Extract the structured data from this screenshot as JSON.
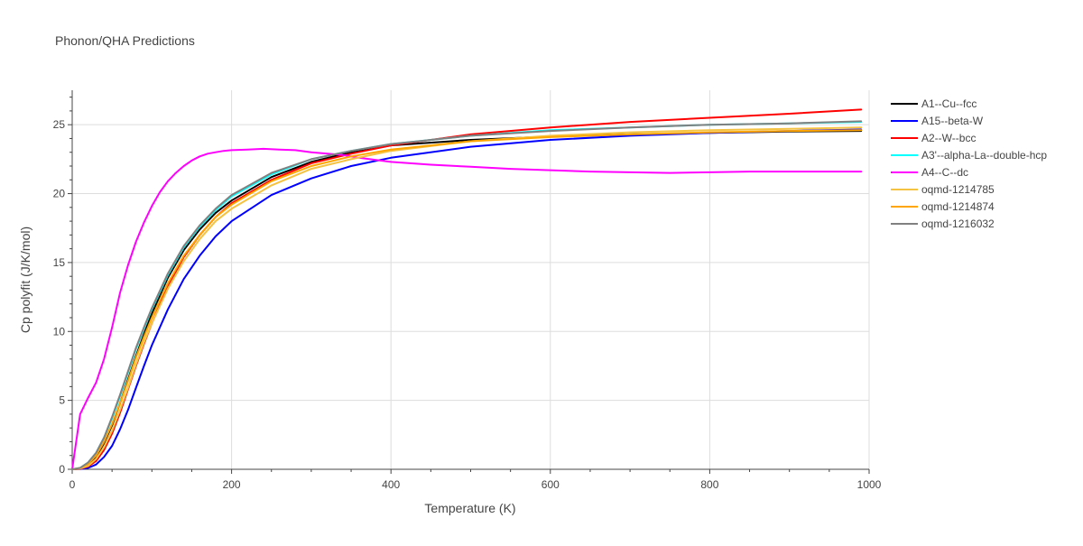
{
  "chart_data": {
    "type": "line",
    "title": "Phonon/QHA Predictions",
    "xlabel": "Temperature (K)",
    "ylabel": "Cp polyfit (J/K/mol)",
    "xlim": [
      0,
      1000
    ],
    "ylim": [
      0,
      27.5
    ],
    "xticks": [
      0,
      200,
      400,
      600,
      800,
      1000
    ],
    "yticks": [
      0,
      5,
      10,
      15,
      20,
      25
    ],
    "grid": true,
    "legend_position": "right",
    "series": [
      {
        "name": "A1--Cu--fcc",
        "color": "#000000",
        "x": [
          0,
          10,
          20,
          30,
          40,
          50,
          60,
          70,
          80,
          90,
          100,
          120,
          140,
          160,
          180,
          200,
          250,
          300,
          350,
          400,
          500,
          600,
          700,
          800,
          900,
          990
        ],
        "y": [
          0,
          0.05,
          0.3,
          0.9,
          1.9,
          3.2,
          4.8,
          6.5,
          8.2,
          9.8,
          11.3,
          13.9,
          15.9,
          17.4,
          18.6,
          19.5,
          21.2,
          22.3,
          23.0,
          23.5,
          23.9,
          24.15,
          24.3,
          24.4,
          24.5,
          24.55
        ]
      },
      {
        "name": "A15--beta-W",
        "color": "#0000ff",
        "x": [
          0,
          10,
          20,
          30,
          40,
          50,
          60,
          70,
          80,
          90,
          100,
          120,
          140,
          160,
          180,
          200,
          250,
          300,
          350,
          400,
          500,
          600,
          700,
          800,
          900,
          990
        ],
        "y": [
          0,
          0.02,
          0.1,
          0.35,
          0.9,
          1.7,
          2.9,
          4.3,
          5.9,
          7.5,
          9.0,
          11.6,
          13.8,
          15.5,
          16.9,
          18.0,
          19.9,
          21.1,
          22.0,
          22.6,
          23.4,
          23.9,
          24.2,
          24.4,
          24.55,
          24.65
        ]
      },
      {
        "name": "A2--W--bcc",
        "color": "#ff0000",
        "x": [
          0,
          10,
          20,
          30,
          40,
          50,
          60,
          70,
          80,
          90,
          100,
          120,
          140,
          160,
          180,
          200,
          250,
          300,
          350,
          400,
          500,
          600,
          700,
          800,
          900,
          990
        ],
        "y": [
          0,
          0.03,
          0.2,
          0.6,
          1.4,
          2.6,
          4.1,
          5.8,
          7.5,
          9.1,
          10.6,
          13.3,
          15.4,
          17.0,
          18.3,
          19.3,
          21.0,
          22.2,
          22.9,
          23.5,
          24.3,
          24.8,
          25.2,
          25.5,
          25.8,
          26.1
        ]
      },
      {
        "name": "A3'--alpha-La--double-hcp",
        "color": "#00ffff",
        "x": [
          0,
          10,
          20,
          30,
          40,
          50,
          60,
          70,
          80,
          90,
          100,
          120,
          140,
          160,
          180,
          200,
          250,
          300,
          350,
          400,
          500,
          600,
          700,
          800,
          900,
          990
        ],
        "y": [
          0,
          0.1,
          0.5,
          1.2,
          2.3,
          3.7,
          5.3,
          7.0,
          8.7,
          10.2,
          11.6,
          14.1,
          16.1,
          17.6,
          18.8,
          19.8,
          21.4,
          22.5,
          23.1,
          23.6,
          24.2,
          24.6,
          24.8,
          25.0,
          25.1,
          25.2
        ]
      },
      {
        "name": "A4--C--dc",
        "color": "#ff00ff",
        "x": [
          0,
          10,
          20,
          30,
          40,
          50,
          60,
          70,
          80,
          90,
          100,
          110,
          120,
          130,
          140,
          150,
          160,
          170,
          180,
          190,
          200,
          220,
          240,
          260,
          280,
          300,
          320,
          340,
          360,
          380,
          400,
          450,
          500,
          550,
          600,
          650,
          700,
          750,
          800,
          850,
          900,
          950,
          990
        ],
        "y": [
          0,
          4.0,
          5.2,
          6.3,
          8.0,
          10.3,
          12.8,
          14.8,
          16.5,
          17.9,
          19.1,
          20.1,
          20.9,
          21.5,
          22.0,
          22.4,
          22.7,
          22.9,
          23.0,
          23.1,
          23.15,
          23.2,
          23.25,
          23.2,
          23.15,
          23.0,
          22.9,
          22.8,
          22.6,
          22.45,
          22.3,
          22.1,
          21.95,
          21.8,
          21.7,
          21.6,
          21.55,
          21.5,
          21.55,
          21.6,
          21.6,
          21.6,
          21.6
        ]
      },
      {
        "name": "oqmd-1214785",
        "color": "#f5c342",
        "x": [
          0,
          10,
          20,
          30,
          40,
          50,
          60,
          70,
          80,
          90,
          100,
          120,
          140,
          160,
          180,
          200,
          250,
          300,
          350,
          400,
          500,
          600,
          700,
          800,
          900,
          990
        ],
        "y": [
          0,
          0.05,
          0.25,
          0.75,
          1.6,
          2.8,
          4.3,
          5.9,
          7.6,
          9.2,
          10.6,
          13.1,
          15.1,
          16.7,
          18.0,
          18.9,
          20.6,
          21.8,
          22.5,
          23.1,
          23.8,
          24.2,
          24.45,
          24.6,
          24.7,
          24.8
        ]
      },
      {
        "name": "oqmd-1214874",
        "color": "#ffa500",
        "x": [
          0,
          10,
          20,
          30,
          40,
          50,
          60,
          70,
          80,
          90,
          100,
          120,
          140,
          160,
          180,
          200,
          250,
          300,
          350,
          400,
          500,
          600,
          700,
          800,
          900,
          990
        ],
        "y": [
          0,
          0.1,
          0.4,
          1.0,
          2.0,
          3.3,
          4.8,
          6.4,
          8.1,
          9.6,
          11.0,
          13.5,
          15.5,
          17.0,
          18.3,
          19.2,
          20.9,
          22.0,
          22.7,
          23.2,
          23.8,
          24.1,
          24.3,
          24.45,
          24.55,
          24.6
        ]
      },
      {
        "name": "oqmd-1216032",
        "color": "#808080",
        "x": [
          0,
          10,
          20,
          30,
          40,
          50,
          60,
          70,
          80,
          90,
          100,
          120,
          140,
          160,
          180,
          200,
          250,
          300,
          350,
          400,
          500,
          600,
          700,
          800,
          900,
          990
        ],
        "y": [
          0,
          0.1,
          0.5,
          1.2,
          2.3,
          3.8,
          5.4,
          7.1,
          8.8,
          10.3,
          11.7,
          14.2,
          16.2,
          17.7,
          18.9,
          19.9,
          21.5,
          22.5,
          23.1,
          23.6,
          24.2,
          24.55,
          24.8,
          25.0,
          25.1,
          25.25
        ]
      }
    ]
  }
}
